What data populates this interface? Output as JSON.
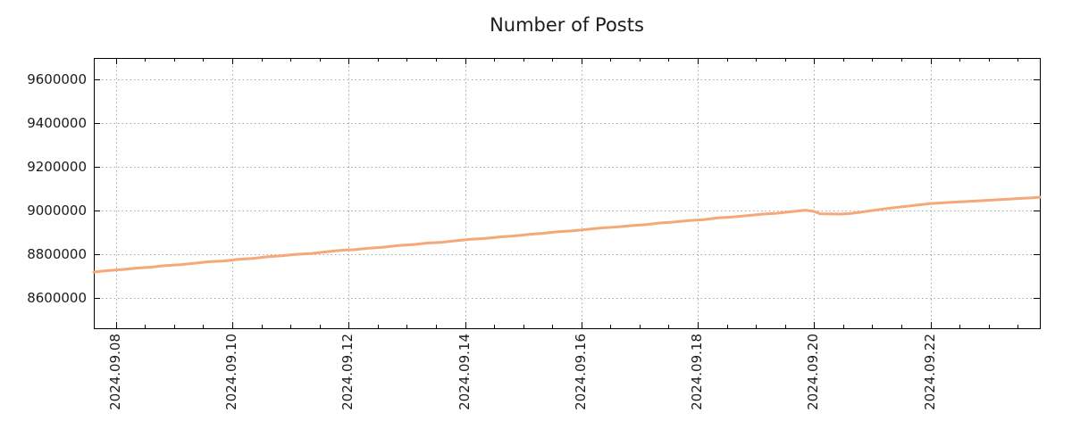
{
  "chart_data": {
    "type": "line",
    "title": "Number of Posts",
    "xlabel": "",
    "ylabel": "",
    "legend": "none",
    "grid": true,
    "x_unit": "days since 2024-09-08",
    "xlim": [
      -0.38,
      15.88
    ],
    "ylim": [
      8460000,
      9700000
    ],
    "x_tick_positions": [
      0,
      2,
      4,
      6,
      8,
      10,
      12,
      14
    ],
    "x_tick_labels": [
      "2024.09.08",
      "2024.09.10",
      "2024.09.12",
      "2024.09.14",
      "2024.09.16",
      "2024.09.18",
      "2024.09.20",
      "2024.09.22"
    ],
    "x_minor_tick_step": 0.5,
    "y_tick_values": [
      8600000,
      8800000,
      9000000,
      9200000,
      9400000,
      9600000
    ],
    "y_tick_labels": [
      "8600000",
      "8800000",
      "9000000",
      "9200000",
      "9400000",
      "9600000"
    ],
    "colors": {
      "line": "#f6a878",
      "grid": "#a8a8a8",
      "border": "#000000",
      "text": "#1c1c1c",
      "background": "#ffffff"
    },
    "series": [
      {
        "name": "Number of Posts",
        "points": [
          [
            -0.38,
            8717800
          ],
          [
            -0.15,
            8724300
          ],
          [
            0.1,
            8728700
          ],
          [
            0.35,
            8736000
          ],
          [
            0.6,
            8740400
          ],
          [
            0.85,
            8747700
          ],
          [
            1.1,
            8751500
          ],
          [
            1.35,
            8758400
          ],
          [
            1.6,
            8765200
          ],
          [
            1.85,
            8768600
          ],
          [
            2.1,
            8775800
          ],
          [
            2.35,
            8780400
          ],
          [
            2.6,
            8788000
          ],
          [
            2.85,
            8792300
          ],
          [
            3.1,
            8799100
          ],
          [
            3.35,
            8802900
          ],
          [
            3.6,
            8810200
          ],
          [
            3.85,
            8817100
          ],
          [
            4.1,
            8820700
          ],
          [
            4.35,
            8827300
          ],
          [
            4.6,
            8831900
          ],
          [
            4.85,
            8839600
          ],
          [
            5.1,
            8843900
          ],
          [
            5.35,
            8850800
          ],
          [
            5.6,
            8854700
          ],
          [
            5.85,
            8861900
          ],
          [
            6.1,
            8868600
          ],
          [
            6.35,
            8872400
          ],
          [
            6.6,
            8878900
          ],
          [
            6.85,
            8883600
          ],
          [
            7.1,
            8890900
          ],
          [
            7.35,
            8895800
          ],
          [
            7.6,
            8902900
          ],
          [
            7.85,
            8906800
          ],
          [
            8.1,
            8913700
          ],
          [
            8.35,
            8920500
          ],
          [
            8.6,
            8924300
          ],
          [
            8.85,
            8930800
          ],
          [
            9.1,
            8935200
          ],
          [
            9.35,
            8942900
          ],
          [
            9.6,
            8947600
          ],
          [
            9.85,
            8954200
          ],
          [
            10.1,
            8958400
          ],
          [
            10.35,
            8966300
          ],
          [
            10.6,
            8970400
          ],
          [
            10.85,
            8976900
          ],
          [
            11.1,
            8983300
          ],
          [
            11.35,
            8987500
          ],
          [
            11.6,
            8994300
          ],
          [
            11.85,
            9002000
          ],
          [
            12.0,
            8996000
          ],
          [
            12.1,
            8985500
          ],
          [
            12.45,
            8983800
          ],
          [
            12.6,
            8986000
          ],
          [
            12.8,
            8992500
          ],
          [
            13.0,
            9000000
          ],
          [
            13.2,
            9007500
          ],
          [
            13.45,
            9015500
          ],
          [
            13.7,
            9023000
          ],
          [
            14.0,
            9032000
          ],
          [
            14.3,
            9037000
          ],
          [
            14.6,
            9041000
          ],
          [
            14.9,
            9045500
          ],
          [
            15.2,
            9050500
          ],
          [
            15.5,
            9055000
          ],
          [
            15.75,
            9058500
          ],
          [
            15.88,
            9061000
          ]
        ]
      }
    ]
  }
}
